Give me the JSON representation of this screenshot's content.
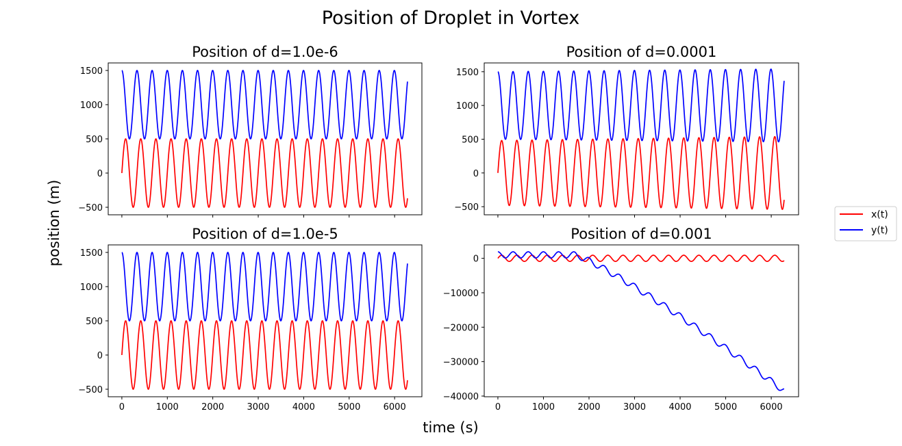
{
  "figure": {
    "title": "Position of Droplet in Vortex",
    "xlabel": "time (s)",
    "ylabel": "position (m)"
  },
  "legend": {
    "placement": "right",
    "entries": [
      {
        "label": "x(t)",
        "color": "#ff0000"
      },
      {
        "label": "y(t)",
        "color": "#0000ff"
      }
    ]
  },
  "chart_data": [
    {
      "type": "line",
      "title": "Position of d=1.0e-6",
      "xlim": [
        -300,
        6600
      ],
      "ylim": [
        -610,
        1610
      ],
      "xticks": [
        0,
        1000,
        2000,
        3000,
        4000,
        5000,
        6000
      ],
      "yticks": [
        -500,
        0,
        500,
        1000,
        1500
      ],
      "xticklabels_visible": false,
      "series": [
        {
          "name": "x(t)",
          "color": "#ff0000",
          "model": {
            "kind": "sine",
            "offset": 0,
            "amplitude": 500,
            "period": 333,
            "phase": "sin",
            "t_end": 6283
          }
        },
        {
          "name": "y(t)",
          "color": "#0000ff",
          "model": {
            "kind": "sine",
            "offset": 1000,
            "amplitude": 500,
            "period": 333,
            "phase": "cos",
            "t_end": 6283
          }
        }
      ]
    },
    {
      "type": "line",
      "title": "Position of d=0.0001",
      "xlim": [
        -300,
        6600
      ],
      "ylim": [
        -620,
        1630
      ],
      "xticks": [
        0,
        1000,
        2000,
        3000,
        4000,
        5000,
        6000
      ],
      "yticks": [
        -500,
        0,
        500,
        1000,
        1500
      ],
      "xticklabels_visible": false,
      "series": [
        {
          "name": "x(t)",
          "color": "#ff0000",
          "model": {
            "kind": "sine",
            "offset": 0,
            "amplitude": 480,
            "amplitude_end": 540,
            "period": 333,
            "phase": "sin",
            "t_end": 6283
          }
        },
        {
          "name": "y(t)",
          "color": "#0000ff",
          "model": {
            "kind": "sine",
            "offset": 1000,
            "amplitude": 500,
            "amplitude_end": 540,
            "period": 333,
            "phase": "cos",
            "t_end": 6283
          }
        }
      ]
    },
    {
      "type": "line",
      "title": "Position of d=1.0e-5",
      "xlim": [
        -300,
        6600
      ],
      "ylim": [
        -610,
        1610
      ],
      "xticks": [
        0,
        1000,
        2000,
        3000,
        4000,
        5000,
        6000
      ],
      "yticks": [
        -500,
        0,
        500,
        1000,
        1500
      ],
      "xticklabels_visible": true,
      "series": [
        {
          "name": "x(t)",
          "color": "#ff0000",
          "model": {
            "kind": "sine",
            "offset": 0,
            "amplitude": 500,
            "period": 333,
            "phase": "sin",
            "t_end": 6283
          }
        },
        {
          "name": "y(t)",
          "color": "#0000ff",
          "model": {
            "kind": "sine",
            "offset": 1000,
            "amplitude": 500,
            "period": 333,
            "phase": "cos",
            "t_end": 6283
          }
        }
      ]
    },
    {
      "type": "line",
      "title": "Position of d=0.001",
      "xlim": [
        -300,
        6600
      ],
      "ylim": [
        -40200,
        3900
      ],
      "xticks": [
        0,
        1000,
        2000,
        3000,
        4000,
        5000,
        6000
      ],
      "yticks": [
        -40000,
        -30000,
        -20000,
        -10000,
        0
      ],
      "xticklabels_visible": true,
      "series": [
        {
          "name": "x(t)",
          "color": "#ff0000",
          "model": {
            "kind": "sine",
            "offset": 0,
            "amplitude": 900,
            "period": 333,
            "phase": "sin",
            "t_end": 6283
          }
        },
        {
          "name": "y(t)",
          "color": "#0000ff",
          "model": {
            "kind": "drift",
            "offset": 1000,
            "amplitude": 900,
            "period": 333,
            "phase": "cos",
            "t_end": 6283,
            "drift_start": 1700,
            "drift_end_value": -38500
          }
        }
      ]
    }
  ]
}
